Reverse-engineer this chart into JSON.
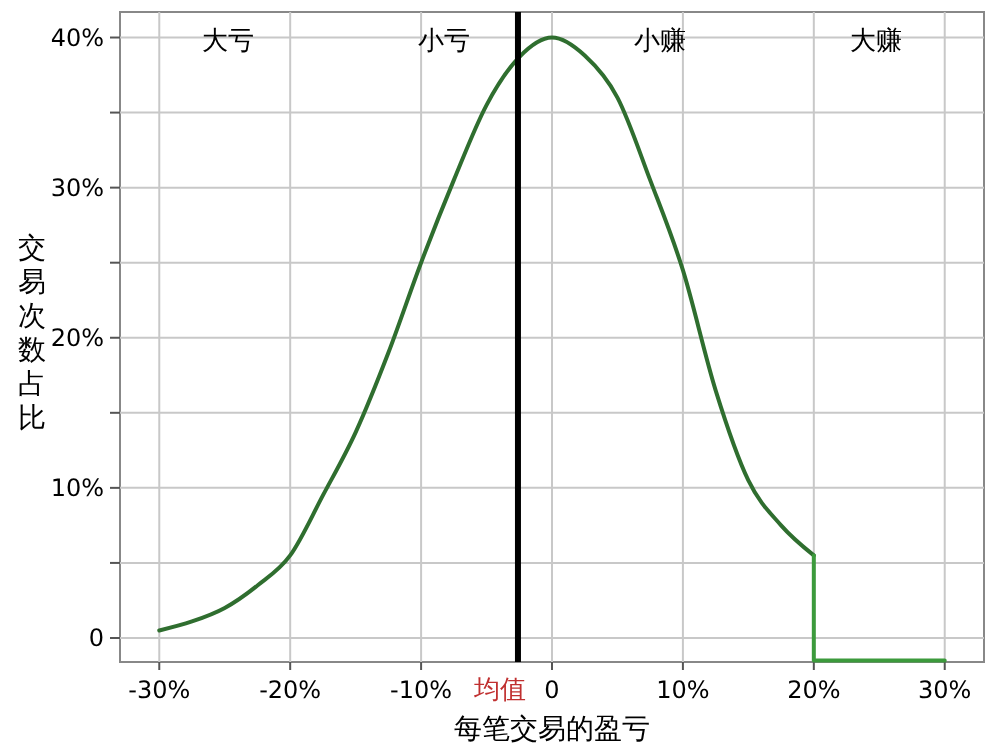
{
  "chart_data": {
    "type": "line",
    "xlabel": "每笔交易的盈亏",
    "ylabel": "交易次数占比",
    "xlim": [
      -33,
      33
    ],
    "ylim": [
      -1.6,
      41.7
    ],
    "xticks": [
      {
        "value": -30,
        "label": "-30%"
      },
      {
        "value": -20,
        "label": "-20%"
      },
      {
        "value": -10,
        "label": "-10%"
      },
      0,
      {
        "value": 10,
        "label": "10%"
      },
      {
        "value": 20,
        "label": "20%"
      },
      {
        "value": 30,
        "label": "30%"
      }
    ],
    "yticks": [
      0,
      {
        "value": 5,
        "label": null
      },
      {
        "value": 10,
        "label": "10%"
      },
      {
        "value": 15,
        "label": null
      },
      {
        "value": 20,
        "label": "20%"
      },
      {
        "value": 25,
        "label": null
      },
      {
        "value": 30,
        "label": "30%"
      },
      {
        "value": 35,
        "label": null
      },
      {
        "value": 40,
        "label": "40%"
      }
    ],
    "grid": true,
    "marker": "none",
    "line_style": "solid",
    "series": [
      {
        "color": "#2f6e2f",
        "x": [
          -30,
          -27.5,
          -25,
          -22.5,
          -20,
          -17.5,
          -15,
          -12.5,
          -10,
          -7.5,
          -5,
          -2.5,
          0,
          2.5,
          5,
          7.5,
          10,
          12.5,
          15,
          17.5,
          20
        ],
        "values": [
          0.5,
          1.1,
          2,
          3.5,
          5.5,
          9.5,
          13.7,
          19,
          25,
          30.5,
          35.5,
          38.7,
          40,
          38.8,
          36,
          30.5,
          24.5,
          16.5,
          10.5,
          7.5,
          5.5
        ]
      },
      {
        "color": "#3c9a3c",
        "x": [
          20,
          20,
          30
        ],
        "values": [
          5.5,
          -1.5,
          -1.5
        ]
      }
    ],
    "ref_lines": [
      {
        "axis": "x",
        "value": -2.6,
        "label": "均值",
        "color": "#000000"
      }
    ],
    "annotations": [
      "大亏",
      "小亏",
      "小赚",
      "大赚"
    ]
  }
}
